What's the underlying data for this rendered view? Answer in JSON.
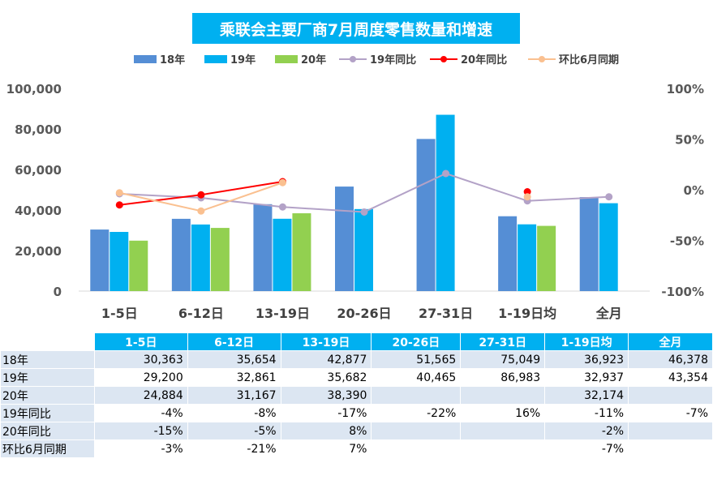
{
  "colors": {
    "s18": "#558ed5",
    "s19": "#00b0f0",
    "s20": "#92d050",
    "l19": "#b3a2c7",
    "l20": "#ff0000",
    "lmom": "#fac090",
    "title_bg": "#00b0f0",
    "header_bg": "#00b0f0",
    "row_band": "#dce6f2"
  },
  "chart_data": {
    "type": "bar+line",
    "title": "乘联会主要厂商7月周度零售数量和增速",
    "categories": [
      "1-5日",
      "6-12日",
      "13-19日",
      "20-26日",
      "27-31日",
      "1-19日均",
      "全月"
    ],
    "y_left": {
      "min": 0,
      "max": 100000,
      "ticks": [
        "0",
        "20,000",
        "40,000",
        "60,000",
        "80,000",
        "100,000"
      ]
    },
    "y_right": {
      "min": -100,
      "max": 100,
      "ticks": [
        "-100%",
        "-50%",
        "0%",
        "50%",
        "100%"
      ]
    },
    "bar_series": [
      {
        "name": "18年",
        "values": [
          30363,
          35654,
          42877,
          51565,
          75049,
          36923,
          46378
        ]
      },
      {
        "name": "19年",
        "values": [
          29200,
          32861,
          35682,
          40465,
          86983,
          32937,
          43354
        ]
      },
      {
        "name": "20年",
        "values": [
          24884,
          31167,
          38390,
          null,
          null,
          32174,
          null
        ]
      }
    ],
    "line_series": [
      {
        "name": "19年同比",
        "values": [
          -4,
          -8,
          -17,
          -22,
          16,
          -11,
          -7
        ]
      },
      {
        "name": "20年同比",
        "values": [
          -15,
          -5,
          8,
          null,
          null,
          -2,
          null
        ]
      },
      {
        "name": "环比6月同期",
        "values": [
          -3,
          -21,
          7,
          null,
          null,
          -7,
          null
        ]
      }
    ],
    "legend_position": "top",
    "grid": false
  },
  "table": {
    "header": [
      "1-5日",
      "6-12日",
      "13-19日",
      "20-26日",
      "27-31日",
      "1-19日均",
      "全月"
    ],
    "rows": [
      {
        "label": "18年",
        "cells": [
          "30,363",
          "35,654",
          "42,877",
          "51,565",
          "75,049",
          "36,923",
          "46,378"
        ]
      },
      {
        "label": "19年",
        "cells": [
          "29,200",
          "32,861",
          "35,682",
          "40,465",
          "86,983",
          "32,937",
          "43,354"
        ]
      },
      {
        "label": "20年",
        "cells": [
          "24,884",
          "31,167",
          "38,390",
          "",
          "",
          "32,174",
          ""
        ]
      },
      {
        "label": "19年同比",
        "cells": [
          "-4%",
          "-8%",
          "-17%",
          "-22%",
          "16%",
          "-11%",
          "-7%"
        ]
      },
      {
        "label": "20年同比",
        "cells": [
          "-15%",
          "-5%",
          "8%",
          "",
          "",
          "-2%",
          ""
        ]
      },
      {
        "label": "环比6月同期",
        "cells": [
          "-3%",
          "-21%",
          "7%",
          "",
          "",
          "-7%",
          ""
        ]
      }
    ]
  }
}
